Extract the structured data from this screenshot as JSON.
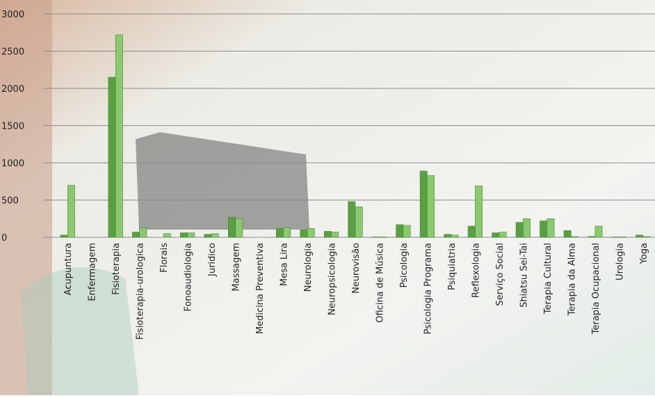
{
  "chart_data": {
    "type": "bar",
    "categories": [
      "Acupuntura",
      "Enfermagem",
      "Fisioterapia",
      "Fisioterapia-urologica",
      "Florais",
      "Fonoaudiologia",
      "Juridico",
      "Massagem",
      "Medicina Preventiva",
      "Mesa Lira",
      "Neurologia",
      "Neuropsicologia",
      "Neurovisão",
      "Oficina de Música",
      "Psicologia",
      "Psicologia Programa",
      "Psiquiatria",
      "Reflexologia",
      "Serviço Social",
      "Shiatsu Sei-Tai",
      "Terapia Cultural",
      "Terapia da Alma",
      "Terapia Ocupacional",
      "Urologia",
      "Yoga"
    ],
    "series": [
      {
        "color": "#5aa043",
        "values": [
          30,
          0,
          2150,
          70,
          0,
          60,
          40,
          270,
          0,
          120,
          100,
          80,
          480,
          5,
          170,
          890,
          40,
          150,
          60,
          200,
          220,
          90,
          10,
          5,
          30
        ]
      },
      {
        "color": "#8cc870",
        "values": [
          700,
          0,
          2720,
          130,
          50,
          60,
          50,
          250,
          0,
          130,
          120,
          70,
          410,
          5,
          160,
          830,
          30,
          690,
          70,
          250,
          250,
          10,
          150,
          5,
          10
        ]
      }
    ],
    "ylim": [
      0,
      3000
    ],
    "yticks": [
      0,
      500,
      1000,
      1500,
      2000,
      2500,
      3000
    ],
    "grid": true
  }
}
